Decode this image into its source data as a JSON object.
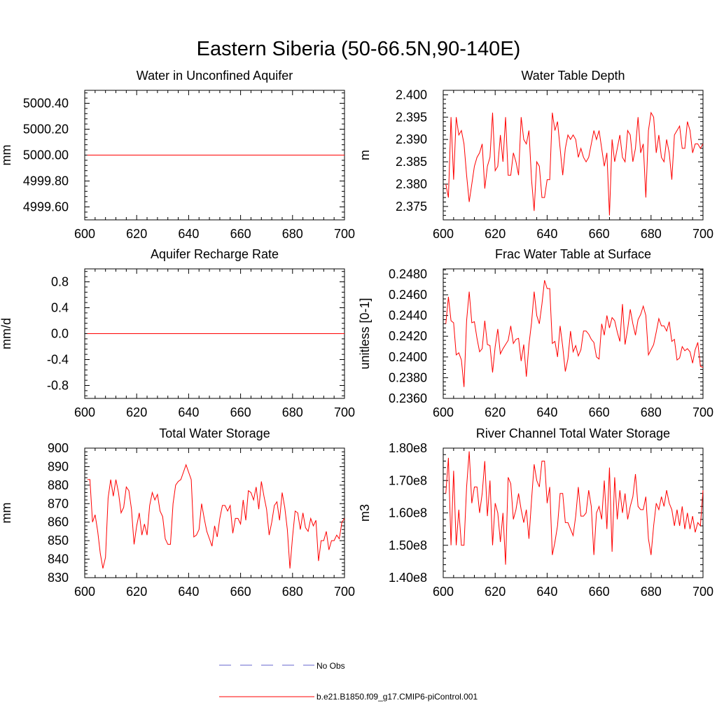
{
  "figure_title": "Eastern Siberia (50-66.5N,90-140E)",
  "legend": {
    "entries": [
      {
        "label": "No Obs",
        "color": "#6666cc",
        "dash": true
      },
      {
        "label": "b.e21.B1850.f09_g17.CMIP6-piControl.001",
        "color": "#ff0000",
        "dash": false
      }
    ]
  },
  "chart_data": [
    {
      "type": "line",
      "title": "Water in Unconfined Aquifer",
      "xlabel": "",
      "ylabel": "mm",
      "xlim": [
        600,
        700
      ],
      "ylim": [
        4999.5,
        5000.5
      ],
      "xticks": [
        600,
        620,
        640,
        660,
        680,
        700
      ],
      "yticks": [
        4999.6,
        4999.8,
        5000.0,
        5000.2,
        5000.4
      ],
      "ytick_labels": [
        "4999.60",
        "4999.80",
        "5000.00",
        "5000.20",
        "5000.40"
      ],
      "grid": false,
      "series": [
        {
          "color": "#ff0000",
          "x_start": 601,
          "x_step": 1,
          "values": [
            5000,
            5000,
            5000,
            5000,
            5000,
            5000,
            5000,
            5000,
            5000,
            5000,
            5000,
            5000,
            5000,
            5000,
            5000,
            5000,
            5000,
            5000,
            5000,
            5000,
            5000,
            5000,
            5000,
            5000,
            5000,
            5000,
            5000,
            5000,
            5000,
            5000,
            5000,
            5000,
            5000,
            5000,
            5000,
            5000,
            5000,
            5000,
            5000,
            5000,
            5000,
            5000,
            5000,
            5000,
            5000,
            5000,
            5000,
            5000,
            5000,
            5000,
            5000,
            5000,
            5000,
            5000,
            5000,
            5000,
            5000,
            5000,
            5000,
            5000,
            5000,
            5000,
            5000,
            5000,
            5000,
            5000,
            5000,
            5000,
            5000,
            5000,
            5000,
            5000,
            5000,
            5000,
            5000,
            5000,
            5000,
            5000,
            5000,
            5000,
            5000,
            5000,
            5000,
            5000,
            5000,
            5000,
            5000,
            5000,
            5000,
            5000,
            5000,
            5000,
            5000,
            5000,
            5000,
            5000,
            5000,
            5000,
            5000,
            5000
          ]
        }
      ]
    },
    {
      "type": "line",
      "title": "Water Table Depth",
      "xlabel": "",
      "ylabel": "m",
      "xlim": [
        600,
        700
      ],
      "ylim": [
        2.372,
        2.401
      ],
      "xticks": [
        600,
        620,
        640,
        660,
        680,
        700
      ],
      "yticks": [
        2.375,
        2.38,
        2.385,
        2.39,
        2.395,
        2.4
      ],
      "ytick_labels": [
        "2.375",
        "2.380",
        "2.385",
        "2.390",
        "2.395",
        "2.400"
      ],
      "grid": false,
      "series": [
        {
          "color": "#ff0000",
          "x_start": 601,
          "x_step": 1,
          "values": [
            2.38,
            2.377,
            2.395,
            2.381,
            2.395,
            2.391,
            2.392,
            2.389,
            2.382,
            2.376,
            2.38,
            2.384,
            2.386,
            2.387,
            2.389,
            2.379,
            2.384,
            2.386,
            2.396,
            2.383,
            2.384,
            2.391,
            2.385,
            2.395,
            2.382,
            2.382,
            2.387,
            2.385,
            2.382,
            2.395,
            2.39,
            2.389,
            2.392,
            2.381,
            2.374,
            2.385,
            2.384,
            2.377,
            2.377,
            2.381,
            2.381,
            2.396,
            2.392,
            2.394,
            2.388,
            2.382,
            2.388,
            2.391,
            2.39,
            2.391,
            2.39,
            2.386,
            2.388,
            2.386,
            2.385,
            2.386,
            2.389,
            2.392,
            2.39,
            2.392,
            2.388,
            2.384,
            2.387,
            2.373,
            2.39,
            2.385,
            2.388,
            2.391,
            2.386,
            2.385,
            2.392,
            2.391,
            2.385,
            2.388,
            2.395,
            2.387,
            2.389,
            2.377,
            2.392,
            2.396,
            2.395,
            2.387,
            2.391,
            2.386,
            2.385,
            2.39,
            2.387,
            2.381,
            2.391,
            2.392,
            2.393,
            2.388,
            2.388,
            2.394,
            2.392,
            2.387,
            2.389,
            2.389,
            2.388,
            2.389
          ]
        }
      ]
    },
    {
      "type": "line",
      "title": "Aquifer Recharge Rate",
      "xlabel": "",
      "ylabel": "mm/d",
      "xlim": [
        600,
        700
      ],
      "ylim": [
        -1,
        1
      ],
      "xticks": [
        600,
        620,
        640,
        660,
        680,
        700
      ],
      "yticks": [
        -0.8,
        -0.4,
        0.0,
        0.4,
        0.8
      ],
      "ytick_labels": [
        "-0.8",
        "-0.4",
        "0.0",
        "0.4",
        "0.8"
      ],
      "grid": false,
      "series": [
        {
          "color": "#ff0000",
          "x_start": 601,
          "x_step": 1,
          "values": [
            0,
            0,
            0,
            0,
            0,
            0,
            0,
            0,
            0,
            0,
            0,
            0,
            0,
            0,
            0,
            0,
            0,
            0,
            0,
            0,
            0,
            0,
            0,
            0,
            0,
            0,
            0,
            0,
            0,
            0,
            0,
            0,
            0,
            0,
            0,
            0,
            0,
            0,
            0,
            0,
            0,
            0,
            0,
            0,
            0,
            0,
            0,
            0,
            0,
            0,
            0,
            0,
            0,
            0,
            0,
            0,
            0,
            0,
            0,
            0,
            0,
            0,
            0,
            0,
            0,
            0,
            0,
            0,
            0,
            0,
            0,
            0,
            0,
            0,
            0,
            0,
            0,
            0,
            0,
            0,
            0,
            0,
            0,
            0,
            0,
            0,
            0,
            0,
            0,
            0,
            0,
            0,
            0,
            0,
            0,
            0,
            0,
            0,
            0,
            0
          ]
        }
      ]
    },
    {
      "type": "line",
      "title": "Frac Water Table at Surface",
      "xlabel": "",
      "ylabel": "unitless [0-1]",
      "xlim": [
        600,
        700
      ],
      "ylim": [
        0.236,
        0.2485
      ],
      "xticks": [
        600,
        620,
        640,
        660,
        680,
        700
      ],
      "yticks": [
        0.236,
        0.238,
        0.24,
        0.242,
        0.244,
        0.246,
        0.248
      ],
      "ytick_labels": [
        "0.2360",
        "0.2380",
        "0.2400",
        "0.2420",
        "0.2440",
        "0.2460",
        "0.2480"
      ],
      "grid": false,
      "series": [
        {
          "color": "#ff0000",
          "x_start": 601,
          "x_step": 1,
          "values": [
            0.2432,
            0.2458,
            0.2435,
            0.2433,
            0.2402,
            0.2404,
            0.2397,
            0.2371,
            0.2435,
            0.2463,
            0.2433,
            0.2434,
            0.2418,
            0.2405,
            0.2408,
            0.2435,
            0.2412,
            0.2411,
            0.2385,
            0.241,
            0.2427,
            0.2403,
            0.2408,
            0.2412,
            0.2416,
            0.243,
            0.2413,
            0.2417,
            0.2418,
            0.2396,
            0.2412,
            0.2381,
            0.2412,
            0.2433,
            0.2463,
            0.244,
            0.2432,
            0.2451,
            0.2474,
            0.2466,
            0.2466,
            0.2413,
            0.2415,
            0.24,
            0.243,
            0.241,
            0.2386,
            0.2398,
            0.2425,
            0.2405,
            0.2411,
            0.2401,
            0.2407,
            0.2425,
            0.2425,
            0.2422,
            0.2417,
            0.2414,
            0.24,
            0.2398,
            0.2432,
            0.2421,
            0.244,
            0.2428,
            0.2438,
            0.2435,
            0.2424,
            0.2415,
            0.2451,
            0.2412,
            0.2427,
            0.2446,
            0.2432,
            0.2421,
            0.2436,
            0.2441,
            0.2449,
            0.244,
            0.2402,
            0.2407,
            0.2412,
            0.2424,
            0.2437,
            0.243,
            0.243,
            0.2425,
            0.2434,
            0.2415,
            0.2417,
            0.2397,
            0.2399,
            0.241,
            0.2406,
            0.2408,
            0.2405,
            0.2394,
            0.2407,
            0.2414,
            0.2391,
            0.239
          ]
        }
      ]
    },
    {
      "type": "line",
      "title": "Total Water Storage",
      "xlabel": "",
      "ylabel": "mm",
      "xlim": [
        600,
        700
      ],
      "ylim": [
        830,
        900
      ],
      "xticks": [
        600,
        620,
        640,
        660,
        680,
        700
      ],
      "yticks": [
        830,
        840,
        850,
        860,
        870,
        880,
        890,
        900
      ],
      "ytick_labels": [
        "830",
        "840",
        "850",
        "860",
        "870",
        "880",
        "890",
        "900"
      ],
      "grid": false,
      "series": [
        {
          "color": "#ff0000",
          "x_start": 601,
          "x_step": 1,
          "values": [
            883,
            883,
            860,
            864,
            855,
            843,
            835,
            841,
            873,
            883,
            874,
            883,
            876,
            865,
            868,
            879,
            877,
            867,
            848,
            858,
            865,
            853,
            859,
            853,
            869,
            876,
            872,
            875,
            866,
            863,
            851,
            848,
            848,
            870,
            880,
            882,
            883,
            887,
            891,
            887,
            883,
            852,
            853,
            856,
            870,
            862,
            855,
            851,
            847,
            858,
            852,
            862,
            869,
            869,
            866,
            869,
            854,
            862,
            862,
            859,
            872,
            861,
            877,
            876,
            872,
            879,
            867,
            882,
            874,
            867,
            853,
            860,
            869,
            871,
            861,
            876,
            868,
            856,
            835,
            852,
            866,
            865,
            856,
            865,
            857,
            855,
            862,
            858,
            861,
            839,
            850,
            850,
            855,
            845,
            850,
            850,
            853,
            851,
            860,
            862
          ]
        }
      ]
    },
    {
      "type": "line",
      "title": "River Channel Total Water Storage",
      "xlabel": "",
      "ylabel": "m3",
      "xlim": [
        600,
        700
      ],
      "ylim": [
        140000000,
        180000000
      ],
      "xticks": [
        600,
        620,
        640,
        660,
        680,
        700
      ],
      "yticks": [
        140000000,
        150000000,
        160000000,
        170000000,
        180000000
      ],
      "ytick_labels": [
        "1.40e8",
        "1.50e8",
        "1.60e8",
        "1.70e8",
        "1.80e8"
      ],
      "grid": false,
      "series": [
        {
          "color": "#ff0000",
          "x_start": 601,
          "x_step": 1,
          "values": [
            166000000,
            177000000,
            150000000,
            173000000,
            150000000,
            161000000,
            150000000,
            150000000,
            168000000,
            179000000,
            163000000,
            168000000,
            168000000,
            160000000,
            166000000,
            176000000,
            159000000,
            170000000,
            150000000,
            163000000,
            160000000,
            151000000,
            160000000,
            144000000,
            171000000,
            169000000,
            158000000,
            161000000,
            166000000,
            161000000,
            157000000,
            161000000,
            152000000,
            164000000,
            175000000,
            170000000,
            168000000,
            176000000,
            176000000,
            163000000,
            168000000,
            147000000,
            151000000,
            156000000,
            166000000,
            166000000,
            157000000,
            157000000,
            155000000,
            153000000,
            159000000,
            168000000,
            159000000,
            159000000,
            160000000,
            167000000,
            162000000,
            147000000,
            160000000,
            162000000,
            158000000,
            170000000,
            155000000,
            174000000,
            148000000,
            171000000,
            158000000,
            167000000,
            160000000,
            166000000,
            158000000,
            162000000,
            165000000,
            172000000,
            162000000,
            161000000,
            161000000,
            165000000,
            152000000,
            147000000,
            156000000,
            163000000,
            161000000,
            165000000,
            162000000,
            167000000,
            163000000,
            161000000,
            156000000,
            161000000,
            156000000,
            162000000,
            155000000,
            160000000,
            155000000,
            159000000,
            154000000,
            157000000,
            156000000,
            167000000
          ]
        }
      ]
    }
  ]
}
